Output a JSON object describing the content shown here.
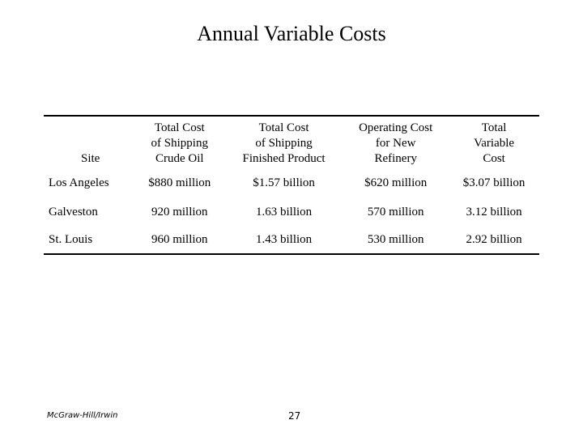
{
  "title": "Annual Variable Costs",
  "table": {
    "headers": [
      "Site",
      "Total Cost\nof Shipping\nCrude Oil",
      "Total Cost\nof Shipping\nFinished Product",
      "Operating Cost\nfor New\nRefinery",
      "Total\nVariable\nCost"
    ],
    "rows": [
      [
        "Los Angeles",
        "$880 million",
        "$1.57 billion",
        "$620 million",
        "$3.07 billion"
      ],
      [
        "Galveston",
        "920 million",
        "1.63 billion",
        "570 million",
        "3.12 billion"
      ],
      [
        "St. Louis",
        "960 million",
        "1.43 billion",
        "530 million",
        "2.92 billion"
      ]
    ]
  },
  "footer": {
    "publisher": "McGraw-Hill/Irwin",
    "page_number": "27"
  }
}
